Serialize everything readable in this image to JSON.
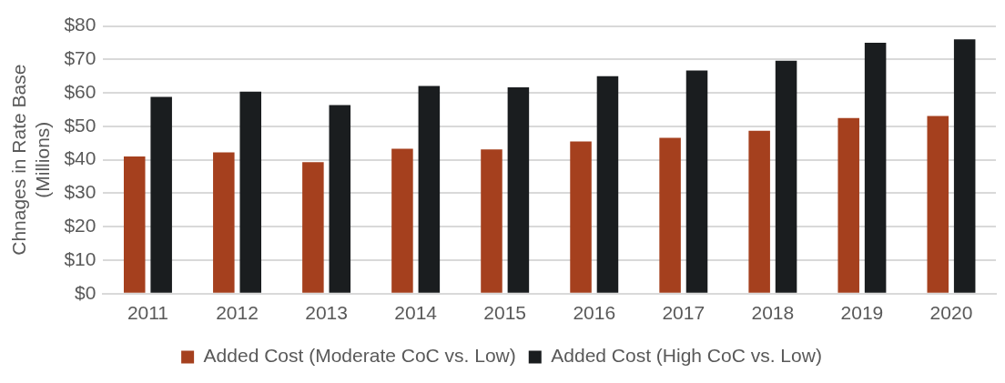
{
  "chart_data": {
    "type": "bar",
    "ylabel": "Chnages in Rate Base\n(Millions)",
    "categories": [
      "2011",
      "2012",
      "2013",
      "2014",
      "2015",
      "2016",
      "2017",
      "2018",
      "2019",
      "2020"
    ],
    "series": [
      {
        "name": "Added Cost (Moderate CoC vs. Low)",
        "color": "#a5401e",
        "values": [
          41.0,
          42.2,
          39.3,
          43.3,
          43.1,
          45.5,
          46.6,
          48.7,
          52.5,
          53.1
        ]
      },
      {
        "name": "Added Cost (High CoC vs. Low)",
        "color": "#1a1d1f",
        "values": [
          58.8,
          60.4,
          56.4,
          62.1,
          61.7,
          65.0,
          66.7,
          69.6,
          75.0,
          76.0
        ]
      }
    ],
    "ylim": [
      0,
      80
    ],
    "yticks": [
      {
        "value": 0,
        "label": "$0"
      },
      {
        "value": 10,
        "label": "$10"
      },
      {
        "value": 20,
        "label": "$20"
      },
      {
        "value": 30,
        "label": "$30"
      },
      {
        "value": 40,
        "label": "$40"
      },
      {
        "value": 50,
        "label": "$50"
      },
      {
        "value": 60,
        "label": "$60"
      },
      {
        "value": 70,
        "label": "$70"
      },
      {
        "value": 80,
        "label": "$80"
      }
    ],
    "grid": "y",
    "legend": "bottom"
  }
}
